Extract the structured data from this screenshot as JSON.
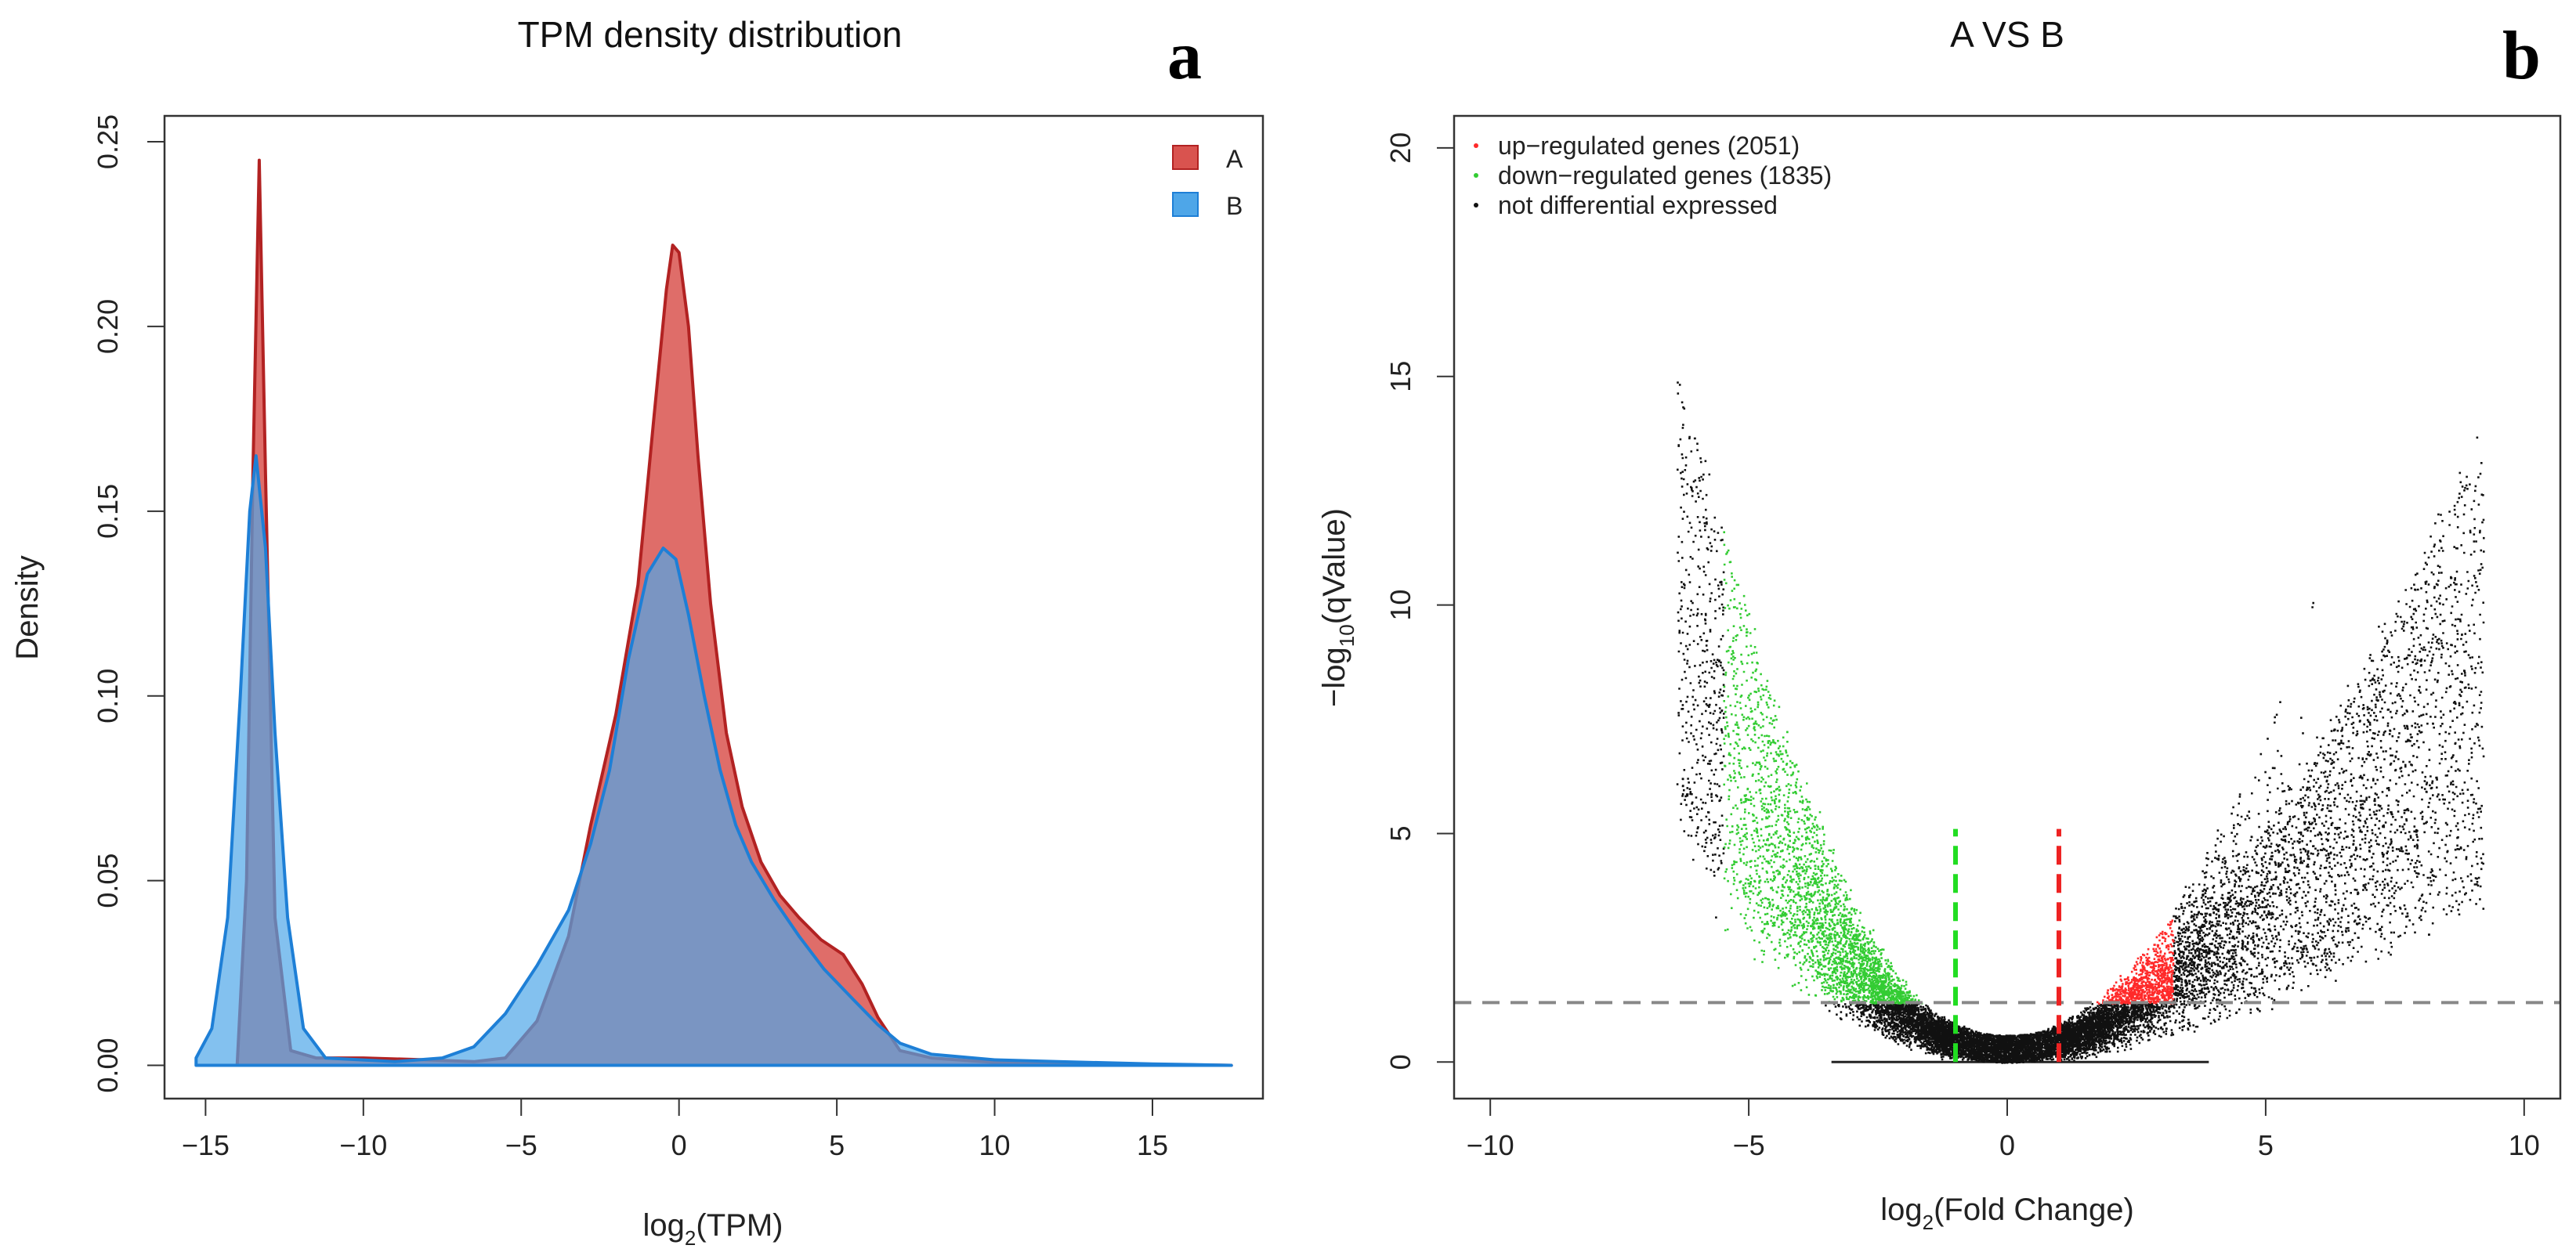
{
  "chart_data": [
    {
      "panel_label": "a",
      "type": "area",
      "title": "TPM density distribution",
      "xlabel_main": "log",
      "xlabel_sub": "2",
      "xlabel_tail": "(TPM)",
      "ylabel": "Density",
      "xlim": [
        -16.3,
        18.5
      ],
      "ylim": [
        -0.009,
        0.257
      ],
      "xticks": [
        -15,
        -10,
        -5,
        0,
        5,
        10,
        15
      ],
      "xtick_labels": [
        "−15",
        "−10",
        "−5",
        "0",
        "5",
        "10",
        "15"
      ],
      "yticks": [
        0.0,
        0.05,
        0.1,
        0.15,
        0.2,
        0.25
      ],
      "ytick_labels": [
        "0.00",
        "0.05",
        "0.10",
        "0.15",
        "0.20",
        "0.25"
      ],
      "legend_position": "top-right",
      "series": [
        {
          "name": "A",
          "fill": "#d9534f",
          "stroke": "#b22222",
          "points": [
            [
              -14.0,
              0.0
            ],
            [
              -13.7,
              0.05
            ],
            [
              -13.5,
              0.16
            ],
            [
              -13.3,
              0.245
            ],
            [
              -13.1,
              0.16
            ],
            [
              -12.8,
              0.04
            ],
            [
              -12.3,
              0.004
            ],
            [
              -11.5,
              0.002
            ],
            [
              -10.0,
              0.002
            ],
            [
              -8.0,
              0.0015
            ],
            [
              -6.5,
              0.001
            ],
            [
              -5.5,
              0.002
            ],
            [
              -4.5,
              0.012
            ],
            [
              -3.5,
              0.035
            ],
            [
              -2.8,
              0.065
            ],
            [
              -2.0,
              0.095
            ],
            [
              -1.3,
              0.13
            ],
            [
              -0.8,
              0.175
            ],
            [
              -0.4,
              0.21
            ],
            [
              -0.2,
              0.222
            ],
            [
              0.0,
              0.22
            ],
            [
              0.3,
              0.2
            ],
            [
              0.6,
              0.165
            ],
            [
              1.0,
              0.125
            ],
            [
              1.5,
              0.09
            ],
            [
              2.0,
              0.07
            ],
            [
              2.6,
              0.055
            ],
            [
              3.2,
              0.046
            ],
            [
              3.8,
              0.04
            ],
            [
              4.5,
              0.034
            ],
            [
              5.2,
              0.03
            ],
            [
              5.8,
              0.022
            ],
            [
              6.3,
              0.013
            ],
            [
              7.0,
              0.004
            ],
            [
              8.0,
              0.002
            ],
            [
              10.0,
              0.0008
            ],
            [
              12.0,
              0.0005
            ],
            [
              14.0,
              0.0003
            ],
            [
              17.5,
              0.0
            ]
          ]
        },
        {
          "name": "B",
          "fill": "#4ea6e8",
          "stroke": "#1e7fd6",
          "points": [
            [
              -15.3,
              0.002
            ],
            [
              -14.8,
              0.01
            ],
            [
              -14.3,
              0.04
            ],
            [
              -13.9,
              0.1
            ],
            [
              -13.6,
              0.15
            ],
            [
              -13.4,
              0.165
            ],
            [
              -13.1,
              0.14
            ],
            [
              -12.8,
              0.09
            ],
            [
              -12.4,
              0.04
            ],
            [
              -11.9,
              0.01
            ],
            [
              -11.2,
              0.002
            ],
            [
              -9.0,
              0.001
            ],
            [
              -7.5,
              0.002
            ],
            [
              -6.5,
              0.005
            ],
            [
              -5.5,
              0.014
            ],
            [
              -4.5,
              0.027
            ],
            [
              -3.5,
              0.042
            ],
            [
              -2.8,
              0.06
            ],
            [
              -2.2,
              0.08
            ],
            [
              -1.6,
              0.11
            ],
            [
              -1.0,
              0.133
            ],
            [
              -0.5,
              0.14
            ],
            [
              -0.1,
              0.137
            ],
            [
              0.3,
              0.122
            ],
            [
              0.8,
              0.1
            ],
            [
              1.3,
              0.08
            ],
            [
              1.8,
              0.065
            ],
            [
              2.3,
              0.055
            ],
            [
              3.0,
              0.045
            ],
            [
              3.8,
              0.035
            ],
            [
              4.6,
              0.026
            ],
            [
              5.5,
              0.018
            ],
            [
              6.3,
              0.011
            ],
            [
              7.0,
              0.006
            ],
            [
              8.0,
              0.003
            ],
            [
              10.0,
              0.0015
            ],
            [
              12.0,
              0.001
            ],
            [
              15.0,
              0.0004
            ],
            [
              17.5,
              0.0
            ]
          ]
        }
      ]
    },
    {
      "panel_label": "b",
      "type": "scatter",
      "title": "A VS B",
      "xlabel_main": "log",
      "xlabel_sub": "2",
      "xlabel_tail": "(Fold Change)",
      "ylabel_main": "−log",
      "ylabel_sub": "10",
      "ylabel_tail": "(qValue)",
      "xlim": [
        -10.7,
        10.7
      ],
      "ylim": [
        -0.8,
        20.7
      ],
      "xticks": [
        -10,
        -5,
        0,
        5,
        10
      ],
      "xtick_labels": [
        "−10",
        "−5",
        "0",
        "5",
        "10"
      ],
      "yticks": [
        0,
        5,
        10,
        15,
        20
      ],
      "ytick_labels": [
        "0",
        "5",
        "10",
        "15",
        "20"
      ],
      "fold_change_thresholds": [
        -1,
        1
      ],
      "qvalue_threshold": 1.3,
      "legend_position": "top-left",
      "legend": [
        {
          "label": "up−regulated genes (2051)",
          "color": "#ff2a2a"
        },
        {
          "label": "down−regulated genes (1835)",
          "color": "#33cc33"
        },
        {
          "label": "not differential expressed",
          "color": "#111111"
        }
      ],
      "up_regulated_count": 2051,
      "down_regulated_count": 1835
    }
  ]
}
